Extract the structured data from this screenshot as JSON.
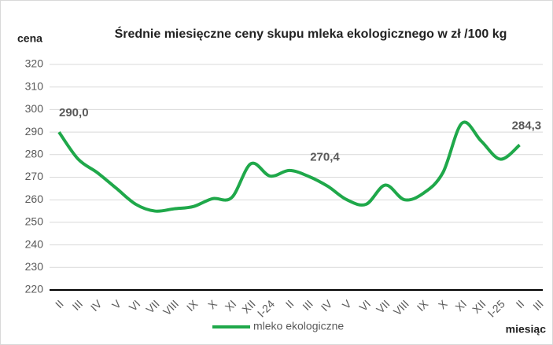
{
  "chart_data": {
    "type": "line",
    "title": "Średnie miesięczne ceny skupu mleka ekologicznego w zł /100 kg",
    "y_label": "cena",
    "x_label": "miesiąc",
    "categories": [
      "II",
      "III",
      "IV",
      "V",
      "VI",
      "VII",
      "VIII",
      "IX",
      "X",
      "XI",
      "XII",
      "I-24",
      "II",
      "III",
      "IV",
      "V",
      "VI",
      "VII",
      "VIII",
      "IX",
      "X",
      "XI",
      "XII",
      "I-25",
      "II",
      "III"
    ],
    "series": [
      {
        "name": "mleko ekologiczne",
        "color": "#1fa84a",
        "values": [
          290.0,
          278,
          272,
          265,
          258,
          255,
          256,
          257,
          260.5,
          261,
          276,
          270.5,
          273,
          270.4,
          266,
          260,
          258,
          266.5,
          260,
          263,
          272,
          294,
          286,
          278,
          284.3,
          null
        ],
        "value_labels": [
          "290,0",
          null,
          null,
          null,
          null,
          null,
          null,
          null,
          null,
          null,
          null,
          null,
          null,
          "270,4",
          null,
          null,
          null,
          null,
          null,
          null,
          null,
          null,
          null,
          null,
          "284,3",
          null
        ]
      }
    ],
    "ylim": [
      220,
      320
    ],
    "yticks": [
      220,
      230,
      240,
      250,
      260,
      270,
      280,
      290,
      300,
      310,
      320
    ],
    "grid": true,
    "legend": "bottom"
  }
}
